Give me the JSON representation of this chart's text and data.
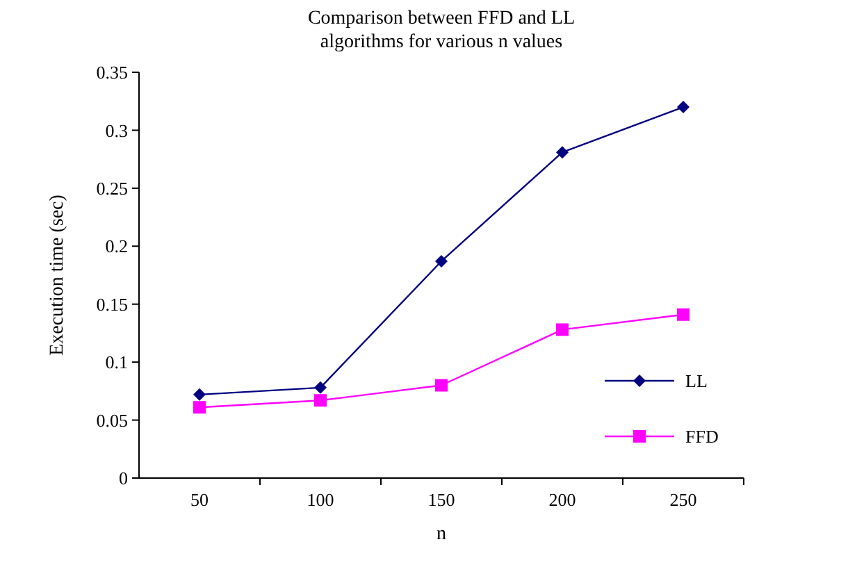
{
  "chart_data": {
    "type": "line",
    "title": "Comparison between FFD and LL\nalgorithms for various n values",
    "xlabel": "n",
    "ylabel": "Execution time (sec)",
    "categories": [
      "50",
      "100",
      "150",
      "200",
      "250"
    ],
    "series": [
      {
        "name": "LL",
        "color": "#000080",
        "marker": "diamond",
        "values": [
          0.072,
          0.078,
          0.187,
          0.281,
          0.32
        ]
      },
      {
        "name": "FFD",
        "color": "#ff00ff",
        "marker": "square",
        "values": [
          0.061,
          0.067,
          0.08,
          0.128,
          0.141
        ]
      }
    ],
    "ylim": [
      0,
      0.35
    ],
    "yticks": [
      0,
      0.05,
      0.1,
      0.15,
      0.2,
      0.25,
      0.3,
      0.35
    ],
    "legend": "bottom right",
    "grid": false
  }
}
